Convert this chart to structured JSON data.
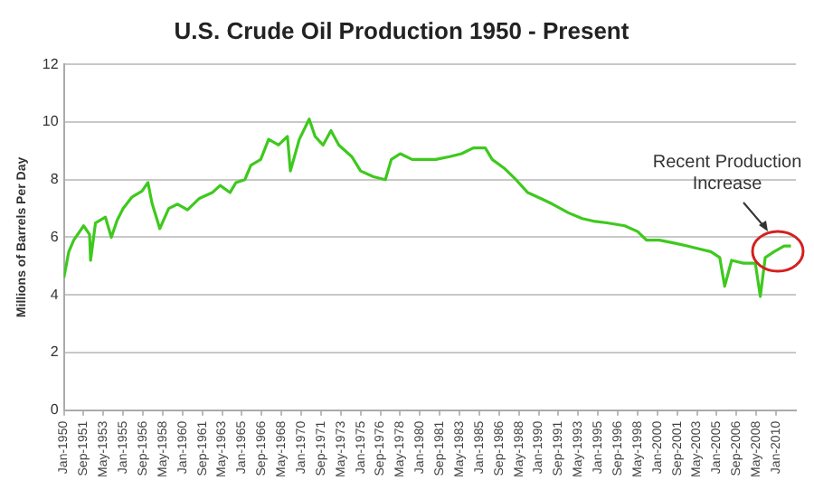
{
  "chart_data": {
    "type": "line",
    "title": "U.S. Crude Oil Production 1950 - Present",
    "ylabel": "Millions of Barrels Per Day",
    "x": [
      "1950-01",
      "1950-06",
      "1950-11",
      "1951-09",
      "1952-03",
      "1952-04",
      "1952-09",
      "1953-07",
      "1954-01",
      "1954-07",
      "1955-01",
      "1955-10",
      "1956-08",
      "1957-02",
      "1957-06",
      "1958-02",
      "1958-11",
      "1959-08",
      "1960-06",
      "1961-06",
      "1962-07",
      "1963-03",
      "1964-01",
      "1964-07",
      "1965-04",
      "1965-10",
      "1966-08",
      "1967-04",
      "1968-02",
      "1968-11",
      "1969-02",
      "1969-11",
      "1970-09",
      "1971-03",
      "1971-11",
      "1972-07",
      "1973-03",
      "1974-04",
      "1975-01",
      "1976-02",
      "1977-02",
      "1977-08",
      "1978-05",
      "1979-05",
      "1980-05",
      "1981-05",
      "1982-07",
      "1983-07",
      "1984-07",
      "1985-07",
      "1986-02",
      "1987-02",
      "1988-02",
      "1989-02",
      "1990-03",
      "1991-03",
      "1992-07",
      "1993-09",
      "1994-10",
      "1995-10",
      "1997-04",
      "1998-05",
      "1999-02",
      "2000-03",
      "2001-06",
      "2002-07",
      "2003-07",
      "2004-07",
      "2005-04",
      "2005-09",
      "2006-04",
      "2007-04",
      "2008-04",
      "2008-09",
      "2009-02",
      "2009-11",
      "2010-09",
      "2011-04"
    ],
    "series": [
      {
        "color": "#3ec91e",
        "values": [
          4.6,
          5.5,
          5.9,
          6.4,
          6.1,
          5.2,
          6.5,
          6.7,
          6.0,
          6.6,
          7.0,
          7.4,
          7.6,
          7.9,
          7.2,
          6.3,
          7.0,
          7.15,
          6.95,
          7.35,
          7.55,
          7.8,
          7.55,
          7.9,
          8.0,
          8.5,
          8.7,
          9.4,
          9.2,
          9.5,
          8.3,
          9.4,
          10.1,
          9.5,
          9.2,
          9.7,
          9.2,
          8.8,
          8.3,
          8.1,
          8.0,
          8.7,
          8.9,
          8.7,
          8.7,
          8.7,
          8.8,
          8.9,
          9.1,
          9.1,
          8.7,
          8.4,
          8.0,
          7.55,
          7.35,
          7.15,
          6.85,
          6.65,
          6.55,
          6.5,
          6.4,
          6.2,
          5.9,
          5.9,
          5.8,
          5.7,
          5.6,
          5.5,
          5.3,
          4.3,
          5.2,
          5.1,
          5.1,
          3.95,
          5.3,
          5.5,
          5.7,
          5.7
        ]
      }
    ],
    "xlim": [
      "1950-01",
      "2011-09"
    ],
    "xticks": [
      {
        "value": "1950-01",
        "label": "Jan-1950"
      },
      {
        "value": "1951-09",
        "label": "Sep-1951"
      },
      {
        "value": "1953-05",
        "label": "May-1953"
      },
      {
        "value": "1955-01",
        "label": "Jan-1955"
      },
      {
        "value": "1956-09",
        "label": "Sep-1956"
      },
      {
        "value": "1958-05",
        "label": "May-1958"
      },
      {
        "value": "1960-01",
        "label": "Jan-1960"
      },
      {
        "value": "1961-09",
        "label": "Sep-1961"
      },
      {
        "value": "1963-05",
        "label": "May-1963"
      },
      {
        "value": "1965-01",
        "label": "Jan-1965"
      },
      {
        "value": "1966-09",
        "label": "Sep-1966"
      },
      {
        "value": "1968-05",
        "label": "May-1968"
      },
      {
        "value": "1970-01",
        "label": "Jan-1970"
      },
      {
        "value": "1971-09",
        "label": "Sep-1971"
      },
      {
        "value": "1973-05",
        "label": "May-1973"
      },
      {
        "value": "1975-01",
        "label": "Jan-1975"
      },
      {
        "value": "1976-09",
        "label": "Sep-1976"
      },
      {
        "value": "1978-05",
        "label": "May-1978"
      },
      {
        "value": "1980-01",
        "label": "Jan-1980"
      },
      {
        "value": "1981-09",
        "label": "Sep-1981"
      },
      {
        "value": "1983-05",
        "label": "May-1983"
      },
      {
        "value": "1985-01",
        "label": "Jan-1985"
      },
      {
        "value": "1986-09",
        "label": "Sep-1986"
      },
      {
        "value": "1988-05",
        "label": "May-1988"
      },
      {
        "value": "1990-01",
        "label": "Jan-1990"
      },
      {
        "value": "1991-09",
        "label": "Sep-1991"
      },
      {
        "value": "1993-05",
        "label": "May-1993"
      },
      {
        "value": "1995-01",
        "label": "Jan-1995"
      },
      {
        "value": "1996-09",
        "label": "Sep-1996"
      },
      {
        "value": "1998-05",
        "label": "May-1998"
      },
      {
        "value": "2000-01",
        "label": "Jan-2000"
      },
      {
        "value": "2001-09",
        "label": "Sep-2001"
      },
      {
        "value": "2003-05",
        "label": "May-2003"
      },
      {
        "value": "2005-01",
        "label": "Jan-2005"
      },
      {
        "value": "2006-09",
        "label": "Sep-2006"
      },
      {
        "value": "2008-05",
        "label": "May-2008"
      },
      {
        "value": "2010-01",
        "label": "Jan-2010"
      }
    ],
    "ylim": [
      0,
      12
    ],
    "yticks": [
      0,
      2,
      4,
      6,
      8,
      10,
      12
    ],
    "grid": "y",
    "marker": "none",
    "line_style": "solid",
    "annotations": [
      "Recent Production Increase"
    ]
  }
}
